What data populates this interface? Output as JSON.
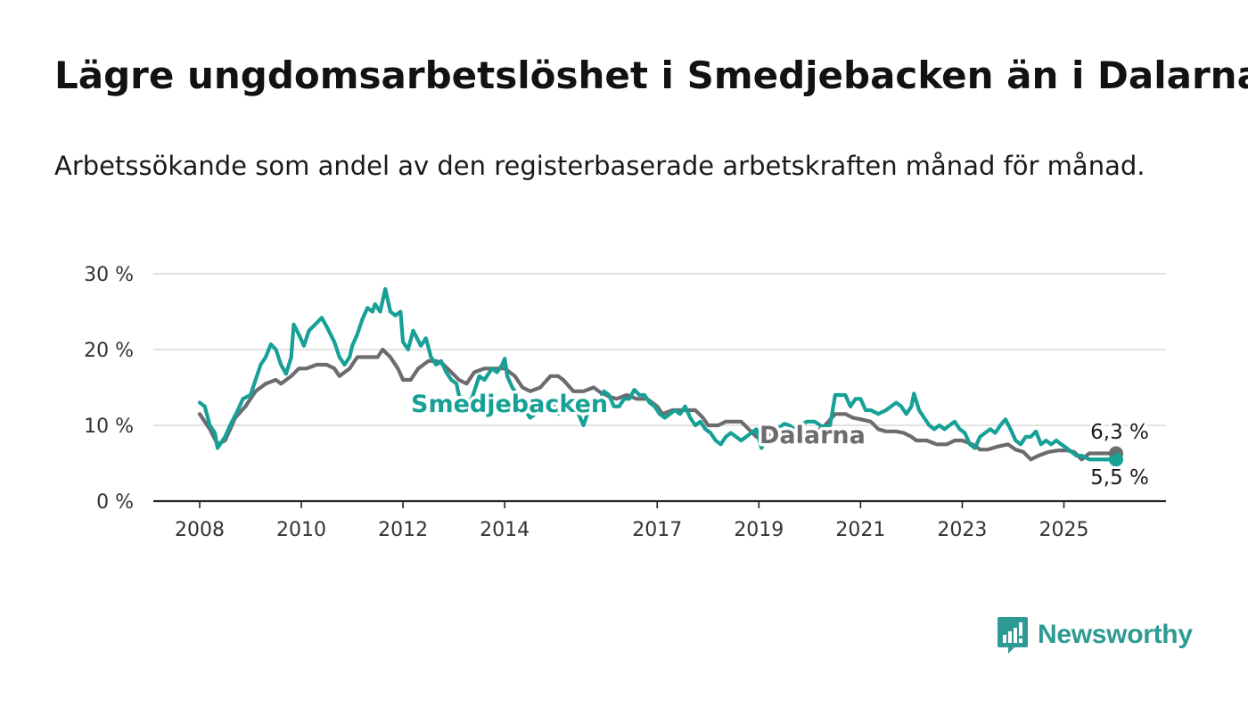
{
  "title": "Lägre ungdomsarbetslöshet i Smedjebacken än i Dalarna",
  "subtitle": "Arbetssökande som andel av den registerbaserade arbetskraften månad för månad.",
  "brand": {
    "name": "Newsworthy",
    "color": "#2d9a93"
  },
  "chart_data": {
    "type": "line",
    "grid": true,
    "legend": "inline labels",
    "ylim": [
      0,
      30
    ],
    "yticks": [
      "0 %",
      "10 %",
      "20 %",
      "30 %"
    ],
    "ytick_values": [
      0,
      10,
      20,
      30
    ],
    "xticks": [
      "2008",
      "2010",
      "2012",
      "2014",
      "2017",
      "2019",
      "2021",
      "2023",
      "2025"
    ],
    "xtick_values": [
      2008.0,
      2010.0,
      2012.0,
      2014.0,
      2017.0,
      2019.0,
      2021.0,
      2023.0,
      2025.0
    ],
    "end_labels": {
      "Dalarna": "6,3 %",
      "Smedjebacken": "5,5 %"
    },
    "series": [
      {
        "name": "Smedjebacken",
        "color": "#16a096",
        "points": [
          [
            2008.0,
            13.0
          ],
          [
            2008.1,
            12.5
          ],
          [
            2008.2,
            10.0
          ],
          [
            2008.3,
            9.0
          ],
          [
            2008.35,
            7.0
          ],
          [
            2008.5,
            8.5
          ],
          [
            2008.6,
            10.0
          ],
          [
            2008.75,
            12.0
          ],
          [
            2008.85,
            13.5
          ],
          [
            2009.0,
            14.0
          ],
          [
            2009.1,
            16.0
          ],
          [
            2009.2,
            18.0
          ],
          [
            2009.3,
            19.0
          ],
          [
            2009.4,
            20.7
          ],
          [
            2009.5,
            20.0
          ],
          [
            2009.6,
            18.0
          ],
          [
            2009.7,
            16.8
          ],
          [
            2009.8,
            19.0
          ],
          [
            2009.85,
            23.3
          ],
          [
            2009.95,
            22.0
          ],
          [
            2010.05,
            20.5
          ],
          [
            2010.15,
            22.5
          ],
          [
            2010.3,
            23.5
          ],
          [
            2010.4,
            24.2
          ],
          [
            2010.5,
            23.0
          ],
          [
            2010.65,
            21.0
          ],
          [
            2010.75,
            19.0
          ],
          [
            2010.85,
            18.0
          ],
          [
            2010.95,
            19.0
          ],
          [
            2011.0,
            20.5
          ],
          [
            2011.1,
            22.0
          ],
          [
            2011.2,
            24.0
          ],
          [
            2011.3,
            25.5
          ],
          [
            2011.4,
            25.0
          ],
          [
            2011.45,
            26.0
          ],
          [
            2011.55,
            25.0
          ],
          [
            2011.65,
            28.0
          ],
          [
            2011.75,
            25.0
          ],
          [
            2011.85,
            24.5
          ],
          [
            2011.95,
            25.0
          ],
          [
            2012.0,
            21.0
          ],
          [
            2012.1,
            20.0
          ],
          [
            2012.2,
            22.5
          ],
          [
            2012.35,
            20.5
          ],
          [
            2012.45,
            21.5
          ],
          [
            2012.55,
            19.0
          ],
          [
            2012.65,
            18.0
          ],
          [
            2012.75,
            18.5
          ],
          [
            2012.85,
            17.0
          ],
          [
            2012.95,
            16.0
          ],
          [
            2013.05,
            15.5
          ],
          [
            2013.1,
            14.0
          ],
          [
            2013.2,
            13.0
          ],
          [
            2013.35,
            13.5
          ],
          [
            2013.5,
            16.5
          ],
          [
            2013.6,
            16.0
          ],
          [
            2013.75,
            17.5
          ],
          [
            2013.85,
            17.0
          ],
          [
            2013.95,
            18.0
          ],
          [
            2014.0,
            18.8
          ],
          [
            2014.05,
            16.5
          ],
          [
            2014.15,
            15.0
          ],
          [
            2014.3,
            13.5
          ],
          [
            2014.4,
            12.0
          ],
          [
            2014.5,
            11.0
          ],
          [
            2014.6,
            11.5
          ],
          [
            2014.7,
            12.5
          ],
          [
            2014.85,
            13.5
          ],
          [
            2014.95,
            13.0
          ],
          [
            2015.05,
            11.5
          ],
          [
            2015.15,
            12.8
          ],
          [
            2015.25,
            13.0
          ],
          [
            2015.35,
            12.5
          ],
          [
            2015.45,
            11.5
          ],
          [
            2015.55,
            10.0
          ],
          [
            2015.65,
            12.0
          ],
          [
            2015.75,
            13.5
          ],
          [
            2015.85,
            13.0
          ],
          [
            2015.95,
            14.5
          ],
          [
            2016.05,
            14.0
          ],
          [
            2016.15,
            12.5
          ],
          [
            2016.25,
            12.5
          ],
          [
            2016.35,
            13.5
          ],
          [
            2016.45,
            13.5
          ],
          [
            2016.55,
            14.7
          ],
          [
            2016.65,
            14.0
          ],
          [
            2016.75,
            14.0
          ],
          [
            2016.85,
            13.0
          ],
          [
            2016.95,
            12.5
          ],
          [
            2017.05,
            11.5
          ],
          [
            2017.15,
            11.0
          ],
          [
            2017.25,
            11.5
          ],
          [
            2017.35,
            12.0
          ],
          [
            2017.45,
            11.5
          ],
          [
            2017.55,
            12.5
          ],
          [
            2017.65,
            11.0
          ],
          [
            2017.75,
            10.0
          ],
          [
            2017.85,
            10.5
          ],
          [
            2017.95,
            9.5
          ],
          [
            2018.05,
            9.0
          ],
          [
            2018.15,
            8.0
          ],
          [
            2018.25,
            7.5
          ],
          [
            2018.35,
            8.5
          ],
          [
            2018.45,
            9.0
          ],
          [
            2018.55,
            8.5
          ],
          [
            2018.65,
            8.0
          ],
          [
            2018.75,
            8.5
          ],
          [
            2018.85,
            9.0
          ],
          [
            2018.95,
            9.5
          ],
          [
            2019.05,
            7.0
          ],
          [
            2019.15,
            8.5
          ],
          [
            2019.25,
            9.0
          ],
          [
            2019.35,
            9.5
          ],
          [
            2019.5,
            10.2
          ],
          [
            2019.6,
            10.0
          ],
          [
            2019.7,
            9.5
          ],
          [
            2019.8,
            10.0
          ],
          [
            2019.95,
            10.5
          ],
          [
            2020.1,
            10.5
          ],
          [
            2020.25,
            9.8
          ],
          [
            2020.4,
            10.0
          ],
          [
            2020.5,
            14.0
          ],
          [
            2020.6,
            14.0
          ],
          [
            2020.7,
            14.0
          ],
          [
            2020.8,
            12.5
          ],
          [
            2020.9,
            13.5
          ],
          [
            2021.0,
            13.5
          ],
          [
            2021.1,
            12.0
          ],
          [
            2021.2,
            12.0
          ],
          [
            2021.35,
            11.5
          ],
          [
            2021.5,
            12.0
          ],
          [
            2021.6,
            12.5
          ],
          [
            2021.7,
            13.0
          ],
          [
            2021.8,
            12.5
          ],
          [
            2021.9,
            11.5
          ],
          [
            2022.0,
            12.5
          ],
          [
            2022.05,
            14.2
          ],
          [
            2022.15,
            12.0
          ],
          [
            2022.25,
            11.0
          ],
          [
            2022.35,
            10.0
          ],
          [
            2022.45,
            9.5
          ],
          [
            2022.55,
            10.0
          ],
          [
            2022.65,
            9.5
          ],
          [
            2022.75,
            10.0
          ],
          [
            2022.85,
            10.5
          ],
          [
            2022.95,
            9.5
          ],
          [
            2023.05,
            9.0
          ],
          [
            2023.15,
            7.5
          ],
          [
            2023.25,
            7.0
          ],
          [
            2023.35,
            8.5
          ],
          [
            2023.45,
            9.0
          ],
          [
            2023.55,
            9.5
          ],
          [
            2023.65,
            9.0
          ],
          [
            2023.75,
            10.0
          ],
          [
            2023.85,
            10.8
          ],
          [
            2023.95,
            9.5
          ],
          [
            2024.05,
            8.0
          ],
          [
            2024.15,
            7.5
          ],
          [
            2024.25,
            8.5
          ],
          [
            2024.35,
            8.5
          ],
          [
            2024.45,
            9.2
          ],
          [
            2024.55,
            7.5
          ],
          [
            2024.65,
            8.0
          ],
          [
            2024.75,
            7.5
          ],
          [
            2024.85,
            8.0
          ],
          [
            2024.95,
            7.5
          ],
          [
            2025.05,
            7.0
          ],
          [
            2025.15,
            6.5
          ],
          [
            2025.25,
            6.0
          ],
          [
            2025.35,
            6.0
          ],
          [
            2025.5,
            5.5
          ]
        ]
      },
      {
        "name": "Dalarna",
        "color": "#6b6b70",
        "points": [
          [
            2008.0,
            11.5
          ],
          [
            2008.1,
            10.5
          ],
          [
            2008.2,
            9.5
          ],
          [
            2008.35,
            7.5
          ],
          [
            2008.5,
            8.0
          ],
          [
            2008.7,
            11.0
          ],
          [
            2008.9,
            12.5
          ],
          [
            2009.1,
            14.5
          ],
          [
            2009.3,
            15.5
          ],
          [
            2009.5,
            16.0
          ],
          [
            2009.6,
            15.5
          ],
          [
            2009.8,
            16.5
          ],
          [
            2009.95,
            17.5
          ],
          [
            2010.1,
            17.5
          ],
          [
            2010.3,
            18.0
          ],
          [
            2010.5,
            18.0
          ],
          [
            2010.65,
            17.5
          ],
          [
            2010.75,
            16.5
          ],
          [
            2010.85,
            17.0
          ],
          [
            2010.95,
            17.5
          ],
          [
            2011.1,
            19.0
          ],
          [
            2011.3,
            19.0
          ],
          [
            2011.5,
            19.0
          ],
          [
            2011.6,
            20.0
          ],
          [
            2011.75,
            19.0
          ],
          [
            2011.9,
            17.5
          ],
          [
            2012.0,
            16.0
          ],
          [
            2012.15,
            16.0
          ],
          [
            2012.3,
            17.5
          ],
          [
            2012.5,
            18.5
          ],
          [
            2012.65,
            18.5
          ],
          [
            2012.8,
            18.0
          ],
          [
            2012.95,
            17.0
          ],
          [
            2013.1,
            16.0
          ],
          [
            2013.25,
            15.5
          ],
          [
            2013.4,
            17.0
          ],
          [
            2013.6,
            17.5
          ],
          [
            2013.8,
            17.5
          ],
          [
            2014.0,
            17.5
          ],
          [
            2014.2,
            16.5
          ],
          [
            2014.35,
            15.0
          ],
          [
            2014.5,
            14.5
          ],
          [
            2014.7,
            15.0
          ],
          [
            2014.9,
            16.5
          ],
          [
            2015.05,
            16.5
          ],
          [
            2015.15,
            16.0
          ],
          [
            2015.35,
            14.5
          ],
          [
            2015.55,
            14.5
          ],
          [
            2015.75,
            15.0
          ],
          [
            2015.95,
            14.0
          ],
          [
            2016.2,
            13.5
          ],
          [
            2016.4,
            14.0
          ],
          [
            2016.6,
            13.5
          ],
          [
            2016.8,
            13.5
          ],
          [
            2017.0,
            12.5
          ],
          [
            2017.1,
            11.5
          ],
          [
            2017.3,
            12.0
          ],
          [
            2017.5,
            12.0
          ],
          [
            2017.75,
            12.0
          ],
          [
            2017.9,
            11.0
          ],
          [
            2018.0,
            10.0
          ],
          [
            2018.2,
            10.0
          ],
          [
            2018.35,
            10.5
          ],
          [
            2018.5,
            10.5
          ],
          [
            2018.65,
            10.5
          ],
          [
            2018.8,
            9.5
          ],
          [
            2018.95,
            8.5
          ],
          [
            2019.1,
            8.0
          ],
          [
            2019.3,
            9.0
          ],
          [
            2019.5,
            9.0
          ],
          [
            2019.7,
            8.5
          ],
          [
            2019.9,
            9.0
          ],
          [
            2020.1,
            9.0
          ],
          [
            2020.3,
            10.0
          ],
          [
            2020.5,
            11.5
          ],
          [
            2020.7,
            11.5
          ],
          [
            2020.85,
            11.0
          ],
          [
            2021.0,
            10.8
          ],
          [
            2021.2,
            10.5
          ],
          [
            2021.35,
            9.5
          ],
          [
            2021.5,
            9.2
          ],
          [
            2021.7,
            9.2
          ],
          [
            2021.85,
            9.0
          ],
          [
            2022.0,
            8.5
          ],
          [
            2022.1,
            8.0
          ],
          [
            2022.3,
            8.0
          ],
          [
            2022.5,
            7.5
          ],
          [
            2022.7,
            7.5
          ],
          [
            2022.85,
            8.0
          ],
          [
            2023.0,
            8.0
          ],
          [
            2023.2,
            7.5
          ],
          [
            2023.35,
            6.8
          ],
          [
            2023.5,
            6.8
          ],
          [
            2023.7,
            7.2
          ],
          [
            2023.9,
            7.5
          ],
          [
            2024.05,
            6.8
          ],
          [
            2024.2,
            6.5
          ],
          [
            2024.35,
            5.5
          ],
          [
            2024.5,
            6.0
          ],
          [
            2024.7,
            6.5
          ],
          [
            2024.9,
            6.7
          ],
          [
            2025.05,
            6.7
          ],
          [
            2025.2,
            6.5
          ],
          [
            2025.35,
            5.5
          ],
          [
            2025.5,
            6.3
          ]
        ]
      }
    ]
  }
}
